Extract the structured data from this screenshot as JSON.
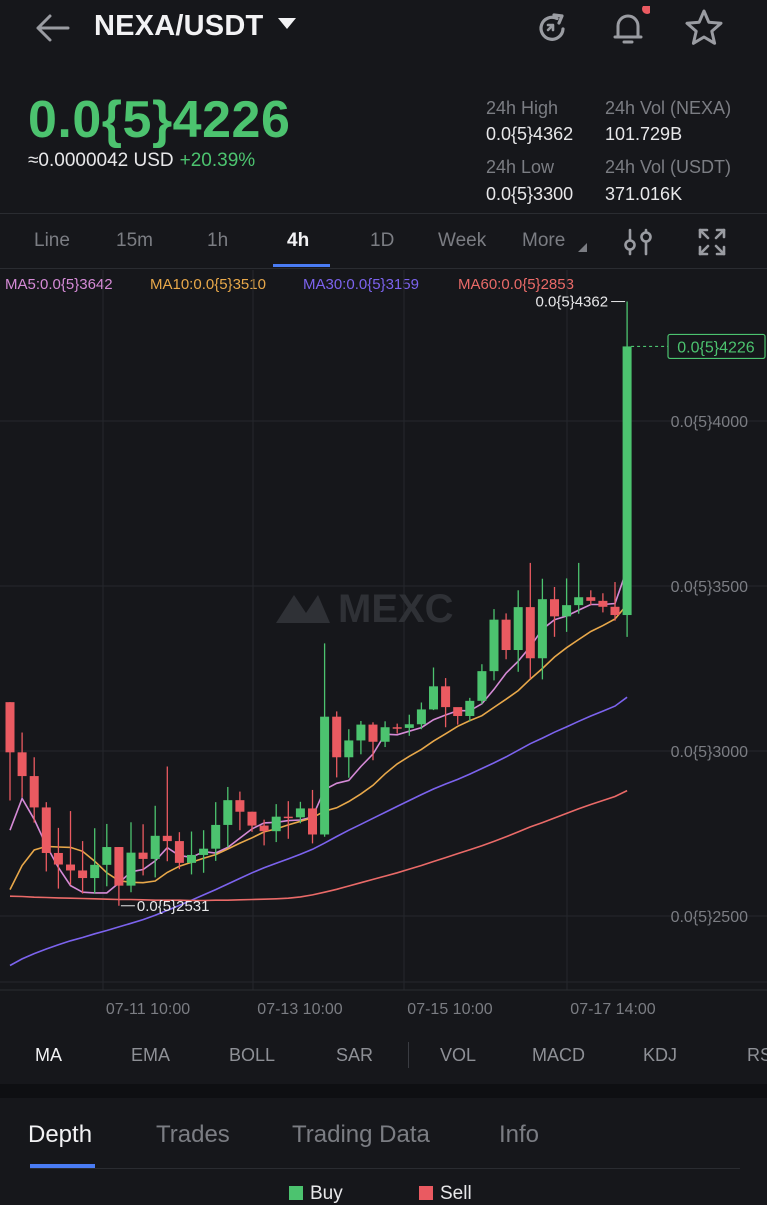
{
  "header": {
    "pair": "NEXA/USDT",
    "icons": [
      "back-arrow-icon",
      "chevron-down-icon",
      "refresh-icon",
      "bell-icon",
      "star-icon"
    ]
  },
  "ticker": {
    "last_price": "0.0{5}4226",
    "usd_price": "≈0.0000042 USD",
    "change_pct": "+20.39%",
    "high_label": "24h High",
    "high_value": "0.0{5}4362",
    "vol_base_label": "24h Vol (NEXA)",
    "vol_base_value": "101.729B",
    "low_label": "24h Low",
    "low_value": "0.0{5}3300",
    "vol_quote_label": "24h Vol  (USDT)",
    "vol_quote_value": "371.016K"
  },
  "timeframes": {
    "items": [
      "Line",
      "15m",
      "1h",
      "4h",
      "1D",
      "Week",
      "More"
    ],
    "selected": "4h"
  },
  "chart_data": {
    "type": "candlestick",
    "watermark": "MEXC",
    "y_tick_labels": [
      "0.0{5}4000",
      "0.0{5}3500",
      "0.0{5}3000",
      "0.0{5}2500"
    ],
    "y_ticks": [
      4000,
      3500,
      3000,
      2500
    ],
    "ylim": [
      2300,
      4500
    ],
    "x_tick_labels": [
      "07-11 10:00",
      "07-13 10:00",
      "07-15 10:00",
      "07-17 14:00"
    ],
    "grid": true,
    "last_price_label": "0.0{5}4226",
    "last_price_value": 4226,
    "high_marker_label": "0.0{5}4362",
    "high_marker_value": 4362,
    "low_marker_label": "0.0{5}2531",
    "low_marker_value": 2531,
    "ma_legend": [
      {
        "label": "MA5:0.0{5}3642",
        "color": "#d58ad6"
      },
      {
        "label": "MA10:0.0{5}3510",
        "color": "#e8a84a"
      },
      {
        "label": "MA30:0.0{5}3159",
        "color": "#7c63ee"
      },
      {
        "label": "MA60:0.0{5}2853",
        "color": "#ea6a68"
      }
    ],
    "up_color": "#4cc36f",
    "down_color": "#ea5a61",
    "candles": [
      [
        3148,
        2996,
        3148,
        2850
      ],
      [
        2996,
        2924,
        3056,
        2860
      ],
      [
        2924,
        2829,
        2981,
        2783
      ],
      [
        2829,
        2691,
        2845,
        2635
      ],
      [
        2691,
        2656,
        2767,
        2583
      ],
      [
        2656,
        2638,
        2818,
        2594
      ],
      [
        2638,
        2615,
        2727,
        2568
      ],
      [
        2615,
        2655,
        2766,
        2568
      ],
      [
        2655,
        2709,
        2779,
        2590
      ],
      [
        2709,
        2592,
        2709,
        2531
      ],
      [
        2592,
        2692,
        2784,
        2572
      ],
      [
        2692,
        2673,
        2778,
        2623
      ],
      [
        2673,
        2743,
        2834,
        2617
      ],
      [
        2743,
        2727,
        2953,
        2666
      ],
      [
        2727,
        2661,
        2754,
        2642
      ],
      [
        2661,
        2685,
        2756,
        2626
      ],
      [
        2685,
        2704,
        2760,
        2631
      ],
      [
        2704,
        2776,
        2845,
        2667
      ],
      [
        2776,
        2851,
        2891,
        2708
      ],
      [
        2851,
        2816,
        2877,
        2760
      ],
      [
        2816,
        2774,
        2816,
        2755
      ],
      [
        2774,
        2757,
        2792,
        2714
      ],
      [
        2757,
        2801,
        2839,
        2724
      ],
      [
        2801,
        2799,
        2848,
        2734
      ],
      [
        2799,
        2826,
        2846,
        2781
      ],
      [
        2826,
        2747,
        2882,
        2720
      ],
      [
        2747,
        3104,
        3326,
        2740
      ],
      [
        3104,
        2981,
        3120,
        2920
      ],
      [
        2981,
        3032,
        3066,
        2919
      ],
      [
        3032,
        3080,
        3091,
        2990
      ],
      [
        3080,
        3028,
        3087,
        2972
      ],
      [
        3028,
        3072,
        3090,
        3012
      ],
      [
        3072,
        3070,
        3083,
        3053
      ],
      [
        3070,
        3081,
        3110,
        3046
      ],
      [
        3081,
        3126,
        3147,
        3066
      ],
      [
        3126,
        3196,
        3253,
        3124
      ],
      [
        3196,
        3133,
        3221,
        3072
      ],
      [
        3133,
        3106,
        3125,
        3080
      ],
      [
        3106,
        3152,
        3161,
        3090
      ],
      [
        3152,
        3242,
        3263,
        3142
      ],
      [
        3242,
        3398,
        3430,
        3214
      ],
      [
        3398,
        3306,
        3417,
        3278
      ],
      [
        3306,
        3436,
        3487,
        3240
      ],
      [
        3436,
        3281,
        3570,
        3219
      ],
      [
        3281,
        3460,
        3522,
        3217
      ],
      [
        3460,
        3408,
        3497,
        3346
      ],
      [
        3408,
        3442,
        3523,
        3361
      ],
      [
        3442,
        3466,
        3570,
        3416
      ],
      [
        3466,
        3455,
        3487,
        3442
      ],
      [
        3455,
        3437,
        3478,
        3420
      ],
      [
        3437,
        3412,
        3512,
        3395
      ],
      [
        3412,
        4226,
        4362,
        3346
      ]
    ],
    "ma_series": {
      "ma5": [
        2760,
        2856,
        2793,
        2714,
        2647,
        2592,
        2572,
        2570,
        2570,
        2600,
        2634,
        2641,
        2667,
        2707,
        2683,
        2678,
        2695,
        2691,
        2708,
        2736,
        2764,
        2782,
        2784,
        2789,
        2791,
        2800,
        2883,
        2902,
        2911,
        2953,
        2991,
        3051,
        3049,
        3060,
        3071,
        3095,
        3109,
        3122,
        3122,
        3143,
        3187,
        3236,
        3272,
        3316,
        3369,
        3398,
        3409,
        3427,
        3444,
        3444,
        3447,
        3552
      ],
      "ma10": [
        2580,
        2653,
        2700,
        2711,
        2709,
        2708,
        2696,
        2666,
        2631,
        2607,
        2602,
        2601,
        2606,
        2632,
        2651,
        2663,
        2675,
        2686,
        2703,
        2721,
        2737,
        2755,
        2764,
        2776,
        2787,
        2798,
        2818,
        2828,
        2847,
        2870,
        2896,
        2931,
        2961,
        2984,
        3005,
        3030,
        3052,
        3075,
        3092,
        3107,
        3132,
        3157,
        3183,
        3218,
        3250,
        3285,
        3313,
        3338,
        3362,
        3380,
        3400,
        3444
      ],
      "ma30": [
        2350,
        2370,
        2386,
        2400,
        2413,
        2425,
        2435,
        2446,
        2456,
        2467,
        2478,
        2489,
        2502,
        2517,
        2532,
        2548,
        2564,
        2580,
        2597,
        2614,
        2631,
        2646,
        2660,
        2673,
        2687,
        2702,
        2721,
        2741,
        2760,
        2778,
        2796,
        2814,
        2832,
        2850,
        2868,
        2885,
        2900,
        2914,
        2930,
        2947,
        2964,
        2982,
        3002,
        3022,
        3039,
        3057,
        3073,
        3090,
        3106,
        3121,
        3136,
        3163
      ],
      "ma60": [
        2560,
        2559,
        2557,
        2556,
        2555,
        2554,
        2553,
        2552,
        2551,
        2550,
        2550,
        2549,
        2548,
        2548,
        2548,
        2547,
        2547,
        2548,
        2548,
        2549,
        2550,
        2551,
        2552,
        2554,
        2558,
        2564,
        2572,
        2581,
        2591,
        2601,
        2611,
        2621,
        2631,
        2642,
        2653,
        2665,
        2677,
        2689,
        2701,
        2713,
        2726,
        2740,
        2755,
        2770,
        2783,
        2797,
        2811,
        2825,
        2838,
        2850,
        2862,
        2880
      ]
    }
  },
  "indicators": {
    "items": [
      "MA",
      "EMA",
      "BOLL",
      "SAR",
      "VOL",
      "MACD",
      "KDJ",
      "RS"
    ],
    "selected": "MA"
  },
  "bottom_tabs": {
    "items": [
      "Depth",
      "Trades",
      "Trading Data",
      "Info"
    ],
    "selected": "Depth"
  },
  "depth_legend": {
    "buy_label": "Buy",
    "sell_label": "Sell",
    "buy_color": "#4cc36f",
    "sell_color": "#ea5a61"
  }
}
